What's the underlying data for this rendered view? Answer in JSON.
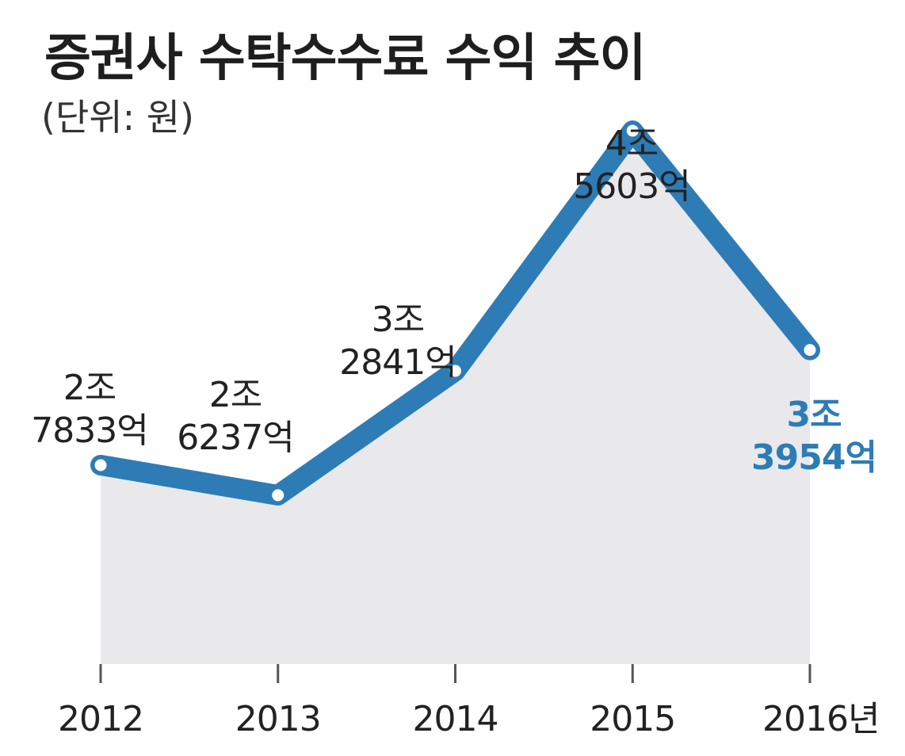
{
  "colors": {
    "line": "#2e7cb5",
    "area": "#e9e9ec",
    "tick": "#555555",
    "text": "#222222",
    "highlight": "#2e7cb5"
  },
  "chart_data": {
    "type": "area",
    "title": "증권사 수탁수수료 수익 추이",
    "subtitle": "(단위: 원)",
    "x": [
      "2012",
      "2013",
      "2014",
      "2015",
      "2016년"
    ],
    "series": [
      {
        "values": [
          2.7833,
          2.6237,
          3.2841,
          4.5603,
          3.3954
        ],
        "value_unit": "조 원",
        "labels": [
          [
            "2조",
            "7833억"
          ],
          [
            "2조",
            "6237억"
          ],
          [
            "3조",
            "2841억"
          ],
          [
            "4조",
            "5603억"
          ],
          [
            "3조",
            "3954억"
          ]
        ]
      }
    ],
    "highlighted_label_index": 4,
    "grid": false,
    "legend": "none"
  }
}
